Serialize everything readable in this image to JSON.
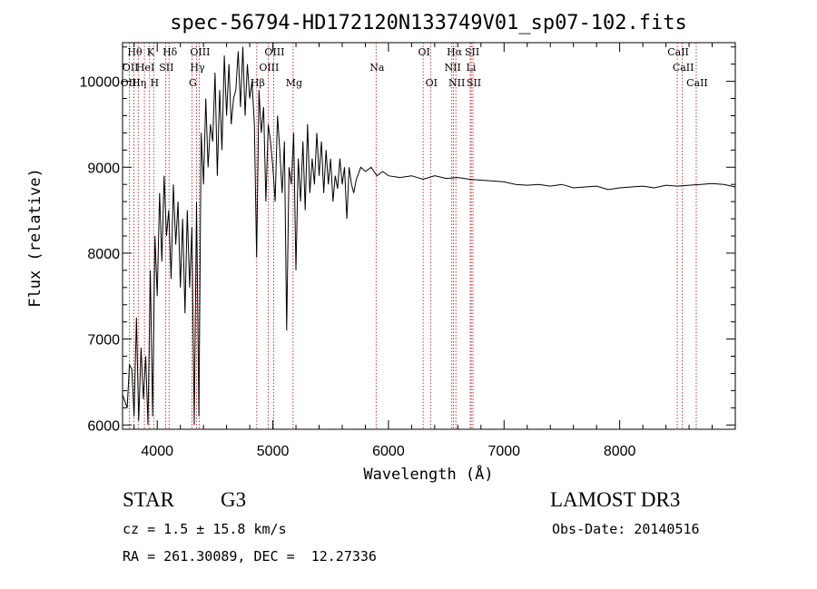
{
  "chart_data": {
    "type": "line",
    "title": "spec-56794-HD172120N133749V01_sp07-102.fits",
    "xlabel": "Wavelength (Å)",
    "ylabel": "Flux (relative)",
    "xlim": [
      3700,
      9000
    ],
    "ylim": [
      5950,
      10450
    ],
    "xticks": [
      4000,
      5000,
      6000,
      7000,
      8000
    ],
    "yticks": [
      6000,
      7000,
      8000,
      9000,
      10000
    ],
    "series": [
      {
        "name": "spectrum",
        "x": [
          3700,
          3740,
          3760,
          3780,
          3800,
          3820,
          3840,
          3860,
          3880,
          3900,
          3920,
          3940,
          3960,
          3980,
          4000,
          4020,
          4040,
          4060,
          4080,
          4100,
          4120,
          4140,
          4160,
          4180,
          4200,
          4220,
          4240,
          4260,
          4280,
          4300,
          4320,
          4340,
          4360,
          4380,
          4400,
          4420,
          4440,
          4460,
          4480,
          4500,
          4520,
          4540,
          4560,
          4580,
          4600,
          4620,
          4640,
          4660,
          4680,
          4700,
          4720,
          4740,
          4760,
          4780,
          4800,
          4820,
          4840,
          4860,
          4880,
          4900,
          4920,
          4940,
          4960,
          4980,
          5000,
          5020,
          5040,
          5060,
          5080,
          5100,
          5120,
          5140,
          5160,
          5180,
          5200,
          5220,
          5240,
          5260,
          5280,
          5300,
          5320,
          5340,
          5360,
          5380,
          5400,
          5420,
          5440,
          5460,
          5480,
          5500,
          5520,
          5540,
          5560,
          5580,
          5600,
          5620,
          5640,
          5660,
          5680,
          5700,
          5720,
          5760,
          5800,
          5850,
          5900,
          5950,
          6000,
          6100,
          6200,
          6300,
          6400,
          6500,
          6600,
          6700,
          6800,
          6900,
          7000,
          7100,
          7200,
          7300,
          7400,
          7500,
          7600,
          7700,
          7800,
          7900,
          8000,
          8100,
          8200,
          8300,
          8400,
          8500,
          8600,
          8700,
          8800,
          8900,
          9000
        ],
        "y": [
          6350,
          6200,
          6700,
          6650,
          6100,
          7250,
          6050,
          6900,
          6300,
          6800,
          6000,
          7800,
          6100,
          8200,
          7500,
          8700,
          7900,
          8900,
          8200,
          8500,
          7700,
          8800,
          8100,
          8600,
          7600,
          8400,
          7300,
          8500,
          7600,
          8300,
          6000,
          8600,
          6100,
          9400,
          8800,
          9800,
          9000,
          9500,
          9300,
          10100,
          8900,
          9900,
          9200,
          10300,
          9600,
          10200,
          9500,
          9800,
          9900,
          10350,
          9700,
          10400,
          9600,
          10200,
          9800,
          10000,
          9500,
          7950,
          9900,
          9400,
          9700,
          8600,
          9500,
          9300,
          9000,
          8600,
          9600,
          9200,
          8700,
          9300,
          7100,
          9000,
          8800,
          9400,
          7800,
          9100,
          8600,
          9300,
          8500,
          9500,
          8700,
          9100,
          8800,
          9400,
          8900,
          9300,
          8700,
          9200,
          8800,
          9100,
          8600,
          8900,
          8750,
          9100,
          8800,
          9000,
          8400,
          9000,
          8800,
          8700,
          8850,
          9000,
          8950,
          9000,
          8900,
          8950,
          8900,
          8880,
          8900,
          8860,
          8900,
          8870,
          8880,
          8860,
          8850,
          8840,
          8830,
          8800,
          8790,
          8800,
          8780,
          8800,
          8760,
          8770,
          8780,
          8740,
          8760,
          8770,
          8780,
          8760,
          8790,
          8780,
          8790,
          8800,
          8810,
          8800,
          8770
        ]
      }
    ],
    "line_markers": [
      {
        "wl": 3760,
        "labels": [
          {
            "row": 1,
            "text": "OII"
          },
          {
            "row": 2,
            "text": "OIII"
          }
        ]
      },
      {
        "wl": 3798,
        "labels": [
          {
            "row": 0,
            "text": "Hθ"
          }
        ]
      },
      {
        "wl": 3835,
        "labels": [
          {
            "row": 2,
            "text": "Hη"
          }
        ]
      },
      {
        "wl": 3889,
        "labels": [
          {
            "row": 1,
            "text": "HeI"
          }
        ]
      },
      {
        "wl": 3934,
        "labels": [
          {
            "row": 0,
            "text": "K"
          }
        ]
      },
      {
        "wl": 3969,
        "labels": [
          {
            "row": 2,
            "text": "H"
          }
        ]
      },
      {
        "wl": 4072,
        "labels": [
          {
            "row": 1,
            "text": "SII"
          }
        ]
      },
      {
        "wl": 4102,
        "labels": [
          {
            "row": 0,
            "text": "Hδ"
          }
        ]
      },
      {
        "wl": 4300,
        "labels": [
          {
            "row": 2,
            "text": "G"
          }
        ]
      },
      {
        "wl": 4340,
        "labels": [
          {
            "row": 1,
            "text": "Hγ"
          }
        ]
      },
      {
        "wl": 4363,
        "labels": [
          {
            "row": 0,
            "text": "OIII"
          }
        ]
      },
      {
        "wl": 4861,
        "labels": [
          {
            "row": 2,
            "text": "Hβ"
          }
        ]
      },
      {
        "wl": 4959,
        "labels": [
          {
            "row": 1,
            "text": "OIII"
          }
        ]
      },
      {
        "wl": 5007,
        "labels": [
          {
            "row": 0,
            "text": "OIII"
          }
        ]
      },
      {
        "wl": 5175,
        "labels": [
          {
            "row": 2,
            "text": "Mg"
          }
        ]
      },
      {
        "wl": 5893,
        "labels": [
          {
            "row": 1,
            "text": "Na"
          }
        ]
      },
      {
        "wl": 6300,
        "labels": [
          {
            "row": 0,
            "text": "OI"
          }
        ]
      },
      {
        "wl": 6364,
        "labels": [
          {
            "row": 2,
            "text": "OI"
          }
        ]
      },
      {
        "wl": 6548,
        "labels": [
          {
            "row": 1,
            "text": "NII"
          }
        ]
      },
      {
        "wl": 6563,
        "labels": [
          {
            "row": 0,
            "text": "Hα"
          }
        ]
      },
      {
        "wl": 6583,
        "labels": [
          {
            "row": 2,
            "text": "NII"
          }
        ]
      },
      {
        "wl": 6707,
        "labels": [
          {
            "row": 1,
            "text": "Li"
          }
        ]
      },
      {
        "wl": 6716,
        "labels": [
          {
            "row": 0,
            "text": "SII"
          }
        ]
      },
      {
        "wl": 6731,
        "labels": [
          {
            "row": 2,
            "text": "SII"
          }
        ]
      },
      {
        "wl": 8498,
        "labels": [
          {
            "row": 0,
            "text": "CaII"
          }
        ]
      },
      {
        "wl": 8542,
        "labels": [
          {
            "row": 1,
            "text": "CaII"
          }
        ]
      },
      {
        "wl": 8662,
        "labels": [
          {
            "row": 2,
            "text": "CaII"
          }
        ]
      }
    ]
  },
  "info": {
    "object": "STAR",
    "subclass": "G3",
    "survey": "LAMOST DR3",
    "cz": "cz = 1.5 ± 15.8 km/s",
    "obs_date": "Obs-Date: 20140516",
    "coords": "RA = 261.30089, DEC =  12.27336"
  },
  "colors": {
    "spectrum": "#000000",
    "line_marker": "#cc0000",
    "axes": "#000000",
    "background": "#ffffff"
  }
}
